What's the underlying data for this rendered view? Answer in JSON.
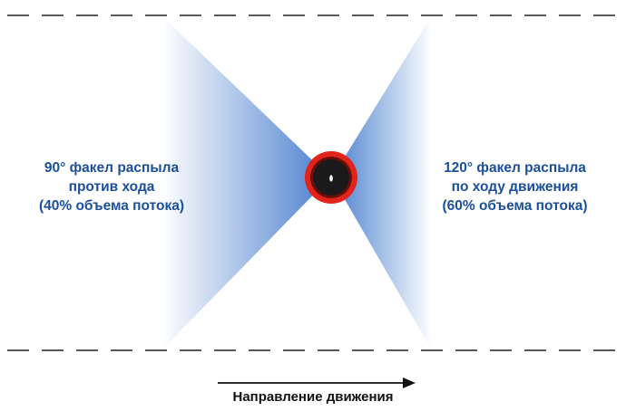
{
  "colors": {
    "spray": "#4a7fcf",
    "text": "#1b4f9c",
    "nozzle_ring": "#e2231a",
    "nozzle_body": "#1a1a1a",
    "lane_line": "#222222",
    "arrow": "#111111"
  },
  "icons": {
    "nozzle": "nozzle-icon",
    "arrow": "direction-arrow-icon"
  },
  "left_spray": {
    "line1": "90° факел распыла",
    "line2": "против хода",
    "line3": "(40% объема потока)"
  },
  "right_spray": {
    "line1": "120° факел распыла",
    "line2": "по ходу движения",
    "line3": "(60% объема потока)"
  },
  "direction": {
    "label": "Направление движения"
  }
}
